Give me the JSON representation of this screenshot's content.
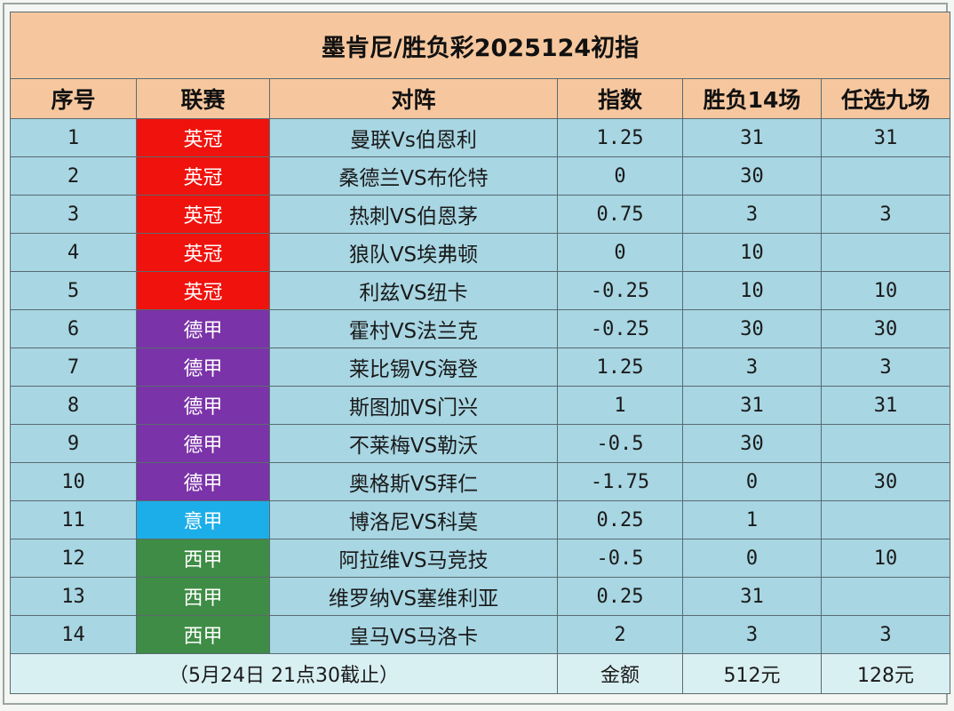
{
  "title": "墨肯尼/胜负彩2025124初指",
  "headers": [
    "序号",
    "联赛",
    "对阵",
    "指数",
    "胜负14场",
    "任选九场"
  ],
  "league_colors": {
    "英冠": "#f0120c",
    "德甲": "#7a33a8",
    "意甲": "#1caee8",
    "西甲": "#3e8c45"
  },
  "rows": [
    {
      "no": "1",
      "league": "英冠",
      "match": "曼联Vs伯恩利",
      "index": "1.25",
      "s14": "31",
      "r9": "31"
    },
    {
      "no": "2",
      "league": "英冠",
      "match": "桑德兰VS布伦特",
      "index": "0",
      "s14": "30",
      "r9": ""
    },
    {
      "no": "3",
      "league": "英冠",
      "match": "热刺VS伯恩茅",
      "index": "0.75",
      "s14": "3",
      "r9": "3"
    },
    {
      "no": "4",
      "league": "英冠",
      "match": "狼队VS埃弗顿",
      "index": "0",
      "s14": "10",
      "r9": ""
    },
    {
      "no": "5",
      "league": "英冠",
      "match": "利兹VS纽卡",
      "index": "-0.25",
      "s14": "10",
      "r9": "10"
    },
    {
      "no": "6",
      "league": "德甲",
      "match": "霍村VS法兰克",
      "index": "-0.25",
      "s14": "30",
      "r9": "30"
    },
    {
      "no": "7",
      "league": "德甲",
      "match": "莱比锡VS海登",
      "index": "1.25",
      "s14": "3",
      "r9": "3"
    },
    {
      "no": "8",
      "league": "德甲",
      "match": "斯图加VS门兴",
      "index": "1",
      "s14": "31",
      "r9": "31"
    },
    {
      "no": "9",
      "league": "德甲",
      "match": "不莱梅VS勒沃",
      "index": "-0.5",
      "s14": "30",
      "r9": ""
    },
    {
      "no": "10",
      "league": "德甲",
      "match": "奥格斯VS拜仁",
      "index": "-1.75",
      "s14": "0",
      "r9": "30"
    },
    {
      "no": "11",
      "league": "意甲",
      "match": "博洛尼VS科莫",
      "index": "0.25",
      "s14": "1",
      "r9": ""
    },
    {
      "no": "12",
      "league": "西甲",
      "match": "阿拉维VS马竞技",
      "index": "-0.5",
      "s14": "0",
      "r9": "10"
    },
    {
      "no": "13",
      "league": "西甲",
      "match": "维罗纳VS塞维利亚",
      "index": "0.25",
      "s14": "31",
      "r9": ""
    },
    {
      "no": "14",
      "league": "西甲",
      "match": "皇马VS马洛卡",
      "index": "2",
      "s14": "3",
      "r9": "3"
    }
  ],
  "footer": {
    "deadline": "（5月24日 21点30截止）",
    "amount_label": "金额",
    "s14_amount": "512元",
    "r9_amount": "128元"
  }
}
